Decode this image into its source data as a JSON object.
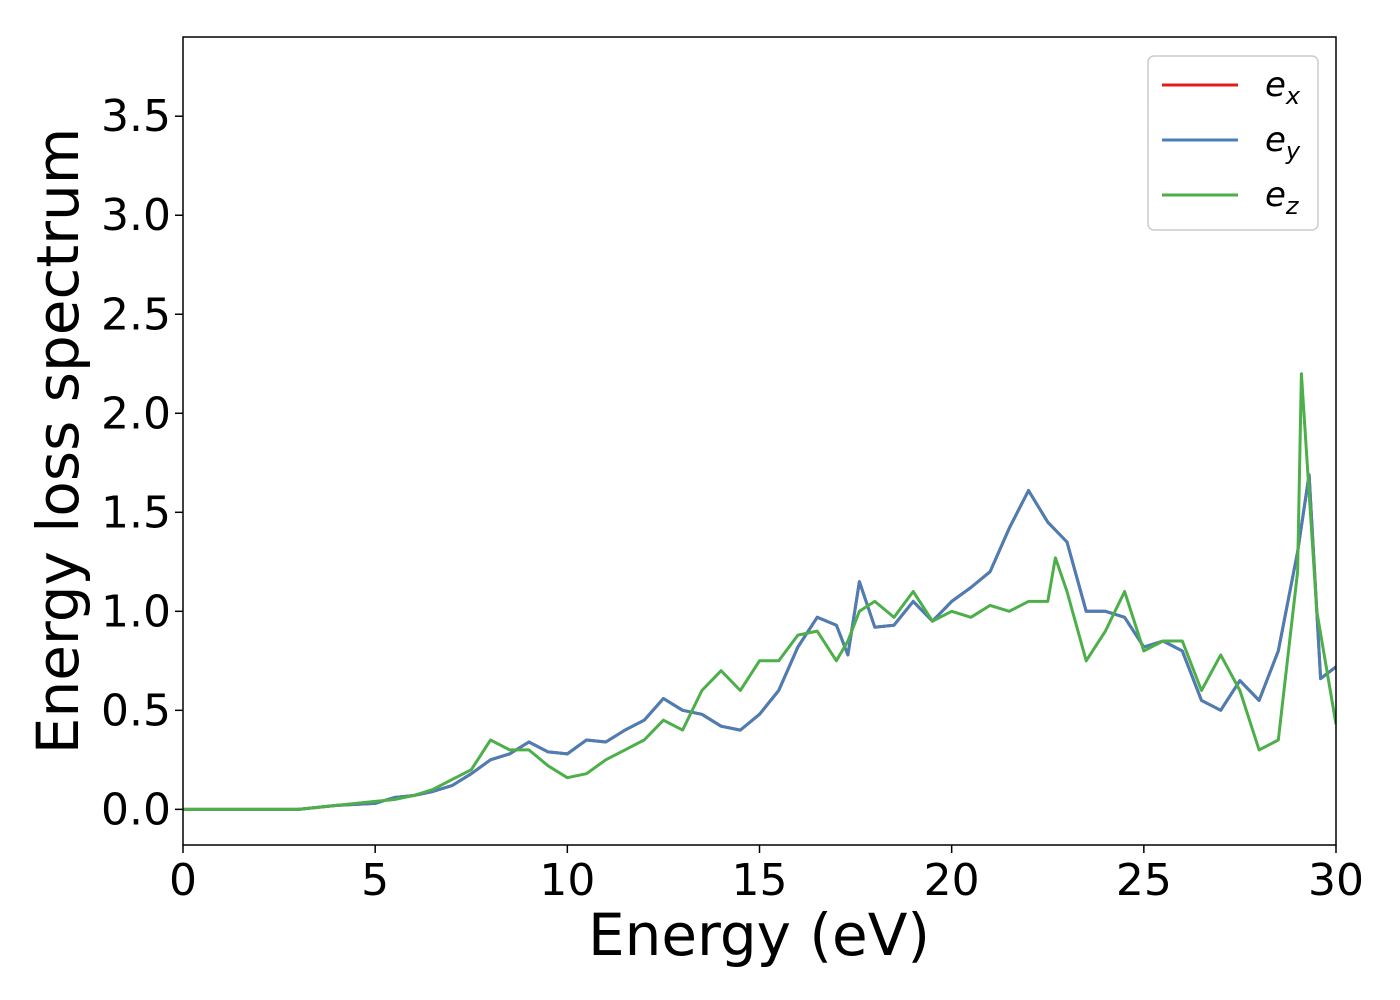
{
  "chart_data": {
    "type": "line",
    "title": "",
    "xlabel": "Energy (eV)",
    "ylabel": "Energy loss spectrum",
    "xlim": [
      0,
      30
    ],
    "ylim": [
      -0.18,
      3.9
    ],
    "xticks": [
      0,
      5,
      10,
      15,
      20,
      25,
      30
    ],
    "xtick_labels": [
      "0",
      "5",
      "10",
      "15",
      "20",
      "25",
      "30"
    ],
    "yticks": [
      0.0,
      0.5,
      1.0,
      1.5,
      2.0,
      2.5,
      3.0,
      3.5
    ],
    "ytick_labels": [
      "0.0",
      "0.5",
      "1.0",
      "1.5",
      "2.0",
      "2.5",
      "3.0",
      "3.5"
    ],
    "grid": false,
    "legend_position": "top-right",
    "series": [
      {
        "name": "e",
        "subscript": "x",
        "color": "#e41a1c",
        "x": [
          0,
          3,
          4,
          5,
          5.5,
          6,
          6.5,
          7,
          7.5,
          8,
          8.5,
          9,
          9.5,
          10,
          10.5,
          11,
          11.5,
          12,
          12.5,
          13,
          13.5,
          14,
          14.5,
          15,
          15.5,
          16,
          16.5,
          17,
          17.3,
          17.6,
          18,
          18.5,
          19,
          19.5,
          20,
          20.5,
          21,
          21.5,
          22,
          22.5,
          23,
          23.5,
          24,
          24.5,
          25,
          25.5,
          26,
          26.5,
          27,
          27.5,
          28,
          28.5,
          29,
          29.3,
          29.6,
          30
        ],
        "y": [
          0,
          0,
          0.02,
          0.03,
          0.06,
          0.07,
          0.09,
          0.12,
          0.18,
          0.25,
          0.28,
          0.34,
          0.29,
          0.28,
          0.35,
          0.34,
          0.4,
          0.45,
          0.56,
          0.5,
          0.48,
          0.42,
          0.4,
          0.48,
          0.6,
          0.82,
          0.97,
          0.93,
          0.78,
          1.15,
          0.92,
          0.93,
          1.05,
          0.95,
          1.05,
          1.12,
          1.2,
          1.42,
          1.61,
          1.45,
          1.35,
          1.0,
          1.0,
          0.97,
          0.82,
          0.85,
          0.8,
          0.55,
          0.5,
          0.65,
          0.55,
          0.8,
          1.3,
          1.69,
          0.66,
          0.72
        ]
      },
      {
        "name": "e",
        "subscript": "y",
        "color": "#4a7fb5",
        "x": [
          0,
          3,
          4,
          5,
          5.5,
          6,
          6.5,
          7,
          7.5,
          8,
          8.5,
          9,
          9.5,
          10,
          10.5,
          11,
          11.5,
          12,
          12.5,
          13,
          13.5,
          14,
          14.5,
          15,
          15.5,
          16,
          16.5,
          17,
          17.3,
          17.6,
          18,
          18.5,
          19,
          19.5,
          20,
          20.5,
          21,
          21.5,
          22,
          22.5,
          23,
          23.5,
          24,
          24.5,
          25,
          25.5,
          26,
          26.5,
          27,
          27.5,
          28,
          28.5,
          29,
          29.3,
          29.6,
          30
        ],
        "y": [
          0,
          0,
          0.02,
          0.03,
          0.06,
          0.07,
          0.09,
          0.12,
          0.18,
          0.25,
          0.28,
          0.34,
          0.29,
          0.28,
          0.35,
          0.34,
          0.4,
          0.45,
          0.56,
          0.5,
          0.48,
          0.42,
          0.4,
          0.48,
          0.6,
          0.82,
          0.97,
          0.93,
          0.78,
          1.15,
          0.92,
          0.93,
          1.05,
          0.95,
          1.05,
          1.12,
          1.2,
          1.42,
          1.61,
          1.45,
          1.35,
          1.0,
          1.0,
          0.97,
          0.82,
          0.85,
          0.8,
          0.55,
          0.5,
          0.65,
          0.55,
          0.8,
          1.3,
          1.69,
          0.66,
          0.72
        ]
      },
      {
        "name": "e",
        "subscript": "z",
        "color": "#4daf4a",
        "x": [
          0,
          3,
          4,
          5,
          5.5,
          6,
          6.5,
          7,
          7.5,
          8,
          8.5,
          9,
          9.5,
          10,
          10.5,
          11,
          11.5,
          12,
          12.5,
          13,
          13.5,
          14,
          14.5,
          15,
          15.5,
          16,
          16.5,
          17,
          17.3,
          17.6,
          18,
          18.5,
          19,
          19.5,
          20,
          20.5,
          21,
          21.5,
          22,
          22.5,
          22.7,
          23,
          23.5,
          24,
          24.5,
          25,
          25.5,
          26,
          26.5,
          27,
          27.5,
          28,
          28.5,
          29,
          29.1,
          29.5,
          30
        ],
        "y": [
          0,
          0,
          0.02,
          0.04,
          0.05,
          0.07,
          0.1,
          0.15,
          0.2,
          0.35,
          0.3,
          0.3,
          0.22,
          0.16,
          0.18,
          0.25,
          0.3,
          0.35,
          0.45,
          0.4,
          0.6,
          0.7,
          0.6,
          0.75,
          0.75,
          0.88,
          0.9,
          0.75,
          0.85,
          1.0,
          1.05,
          0.97,
          1.1,
          0.95,
          1.0,
          0.97,
          1.03,
          1.0,
          1.05,
          1.05,
          1.27,
          1.1,
          0.75,
          0.9,
          1.1,
          0.8,
          0.85,
          0.85,
          0.6,
          0.78,
          0.6,
          0.3,
          0.35,
          1.2,
          2.2,
          1.0,
          0.43
        ]
      }
    ]
  }
}
